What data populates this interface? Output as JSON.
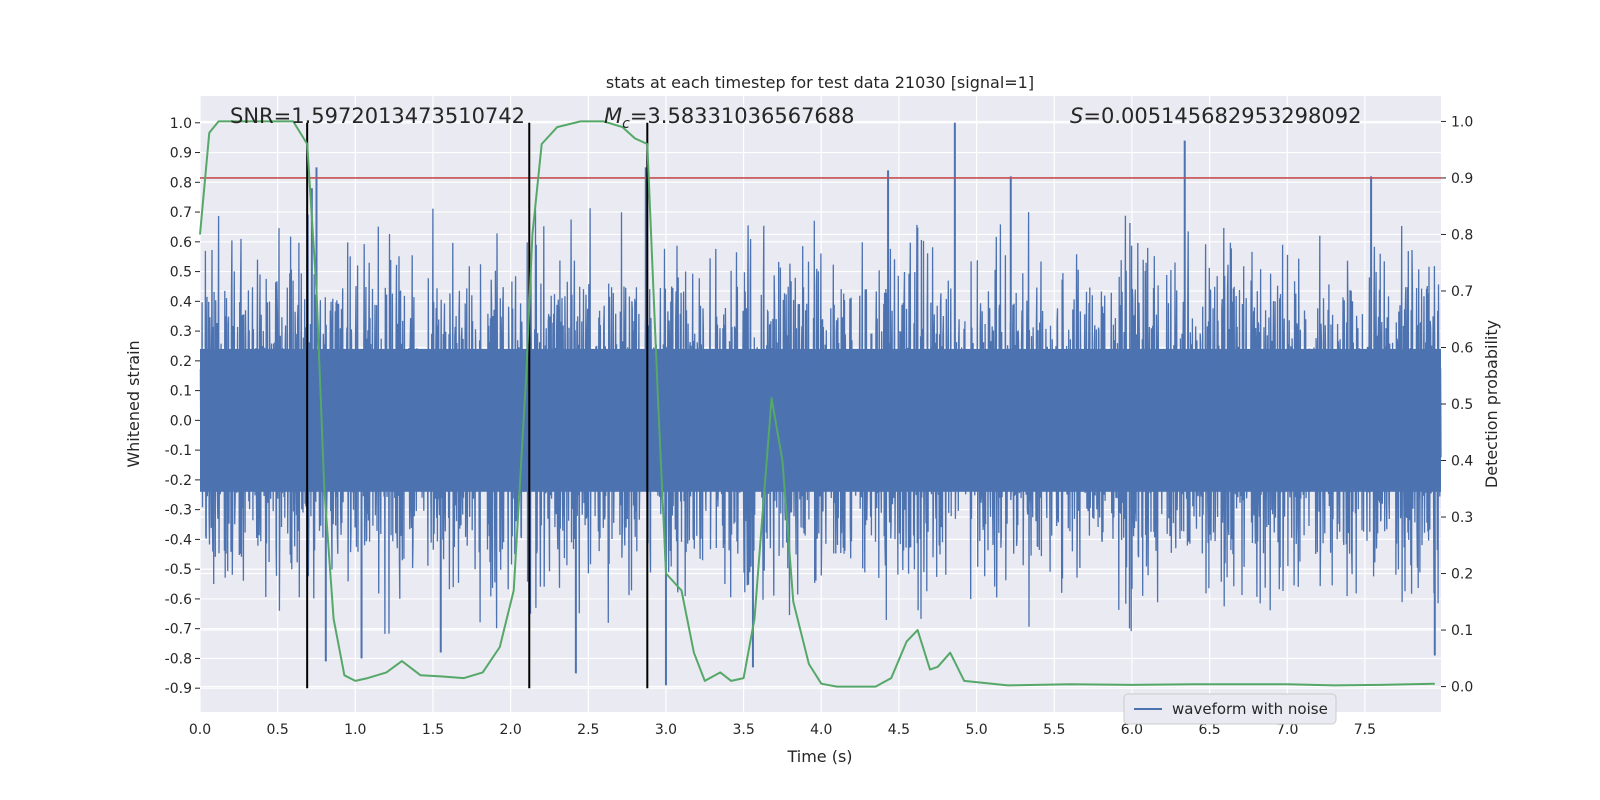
{
  "chart_data": {
    "type": "line",
    "title": "stats at each timestep for test data 21030 [signal=1]",
    "xlabel": "Time (s)",
    "ylabel_left": "Whitened strain",
    "ylabel_right": "Detection probability",
    "xlim": [
      0.0,
      7.99
    ],
    "ylim_left": [
      -0.98,
      1.09
    ],
    "ylim_right": [
      -0.045,
      1.045
    ],
    "x_ticks": [
      "0.0",
      "0.5",
      "1.0",
      "1.5",
      "2.0",
      "2.5",
      "3.0",
      "3.5",
      "4.0",
      "4.5",
      "5.0",
      "5.5",
      "6.0",
      "6.5",
      "7.0",
      "7.5"
    ],
    "y_ticks_left": [
      "1.0",
      "0.9",
      "0.8",
      "0.7",
      "0.6",
      "0.5",
      "0.4",
      "0.3",
      "0.2",
      "0.1",
      "0.0",
      "-0.1",
      "-0.2",
      "-0.3",
      "-0.4",
      "-0.5",
      "-0.6",
      "-0.7",
      "-0.8",
      "-0.9"
    ],
    "y_ticks_right": [
      "1.0",
      "0.9",
      "0.8",
      "0.7",
      "0.6",
      "0.5",
      "0.4",
      "0.3",
      "0.2",
      "0.1",
      "0.0"
    ],
    "grid": true,
    "legend": {
      "position": "bottom-right",
      "entries": [
        "waveform with noise"
      ]
    },
    "annotations": {
      "snr": "SNR=1.5972013473510742",
      "mc_symbol": "M",
      "mc_sub": "c",
      "mc_value": "=3.58331036567688",
      "s_symbol": "S",
      "s_value": "=0.005145682953298092"
    },
    "threshold": {
      "axis": "right",
      "value": 0.9,
      "color": "#c44e52"
    },
    "vertical_markers": [
      0.69,
      2.12,
      2.88
    ],
    "waveform": {
      "name": "waveform with noise",
      "color": "#4c72b0",
      "core_amplitude": 0.24,
      "peaks": [
        [
          0.75,
          0.85
        ],
        [
          0.72,
          0.78
        ],
        [
          0.81,
          -0.81
        ],
        [
          1.04,
          -0.8
        ],
        [
          1.55,
          -0.78
        ],
        [
          2.42,
          -0.85
        ],
        [
          3.0,
          -0.89
        ],
        [
          3.56,
          -0.83
        ],
        [
          2.87,
          0.85
        ],
        [
          4.43,
          0.84
        ],
        [
          4.86,
          1.0
        ],
        [
          5.22,
          0.82
        ],
        [
          6.34,
          0.94
        ],
        [
          7.54,
          0.82
        ],
        [
          7.95,
          -0.79
        ]
      ]
    },
    "series": [
      {
        "name": "detection probability",
        "color": "#55a868",
        "x": [
          0.0,
          0.06,
          0.12,
          0.3,
          0.45,
          0.6,
          0.69,
          0.75,
          0.8,
          0.86,
          0.93,
          1.0,
          1.08,
          1.2,
          1.3,
          1.42,
          1.55,
          1.7,
          1.82,
          1.93,
          2.02,
          2.1,
          2.14,
          2.2,
          2.3,
          2.45,
          2.6,
          2.72,
          2.8,
          2.88,
          2.95,
          3.0,
          3.1,
          3.18,
          3.25,
          3.35,
          3.42,
          3.5,
          3.57,
          3.62,
          3.68,
          3.75,
          3.82,
          3.92,
          4.0,
          4.1,
          4.35,
          4.45,
          4.55,
          4.62,
          4.7,
          4.75,
          4.83,
          4.92,
          5.2,
          5.6,
          6.0,
          6.4,
          7.0,
          7.3,
          7.6,
          7.95
        ],
        "y": [
          0.8,
          0.98,
          1.0,
          1.0,
          1.0,
          1.0,
          0.96,
          0.7,
          0.35,
          0.12,
          0.02,
          0.01,
          0.015,
          0.025,
          0.045,
          0.02,
          0.018,
          0.015,
          0.025,
          0.07,
          0.17,
          0.55,
          0.8,
          0.96,
          0.99,
          1.0,
          1.0,
          0.99,
          0.97,
          0.96,
          0.5,
          0.2,
          0.17,
          0.06,
          0.01,
          0.025,
          0.01,
          0.015,
          0.12,
          0.3,
          0.51,
          0.4,
          0.15,
          0.04,
          0.005,
          0.0,
          0.0,
          0.015,
          0.08,
          0.1,
          0.03,
          0.035,
          0.06,
          0.01,
          0.002,
          0.004,
          0.003,
          0.004,
          0.004,
          0.002,
          0.003,
          0.005
        ]
      }
    ]
  }
}
